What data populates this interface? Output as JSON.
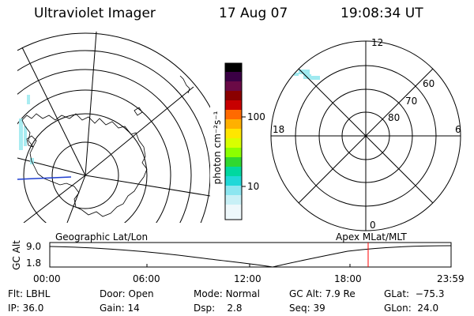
{
  "header": {
    "instrument": "Ultraviolet Imager",
    "date": "17 Aug 07",
    "time": "19:08:34 UT"
  },
  "colorbar": {
    "unit_label": "photon cm⁻²s⁻¹",
    "ticks": [
      "100",
      "10"
    ],
    "colors": [
      "#000000",
      "#3a0044",
      "#6a0a46",
      "#8a0000",
      "#c80000",
      "#ff3c00",
      "#ff9a00",
      "#ffd800",
      "#e6ff00",
      "#a6ff00",
      "#40e000",
      "#00d88c",
      "#00d8d8",
      "#a0eaf0",
      "#e6f6fa"
    ]
  },
  "polar_plot": {
    "mlt_labels": {
      "top": "12",
      "right": "6",
      "bottom": "0",
      "left": "18"
    },
    "lat_labels": [
      "60",
      "70",
      "80"
    ]
  },
  "altitude_panel": {
    "left_caption": "Geographic Lat/Lon",
    "right_caption": "Apex MLat/MLT",
    "ylabel": "GC Alt",
    "y_ticks": [
      "9.0",
      "1.8"
    ],
    "x_ticks": [
      "00:00",
      "06:00",
      "12:00",
      "18:00",
      "23:59"
    ],
    "current_time_marker_color": "#ff0000"
  },
  "footer": {
    "row1": [
      {
        "key": "Flt:",
        "value": "LBHL"
      },
      {
        "key": "Door:",
        "value": "Open"
      },
      {
        "key": "Mode:",
        "value": "Normal"
      },
      {
        "key": "GC Alt:",
        "value": "7.9 Re"
      },
      {
        "key": "GLat:",
        "value": "−75.3"
      }
    ],
    "row2": [
      {
        "key": "IP:",
        "value": "36.0"
      },
      {
        "key": "Gain:",
        "value": "14"
      },
      {
        "key": "Dsp:",
        "value": "2.8"
      },
      {
        "key": "Seq:",
        "value": "39"
      },
      {
        "key": "GLon:",
        "value": "24.0"
      }
    ]
  }
}
